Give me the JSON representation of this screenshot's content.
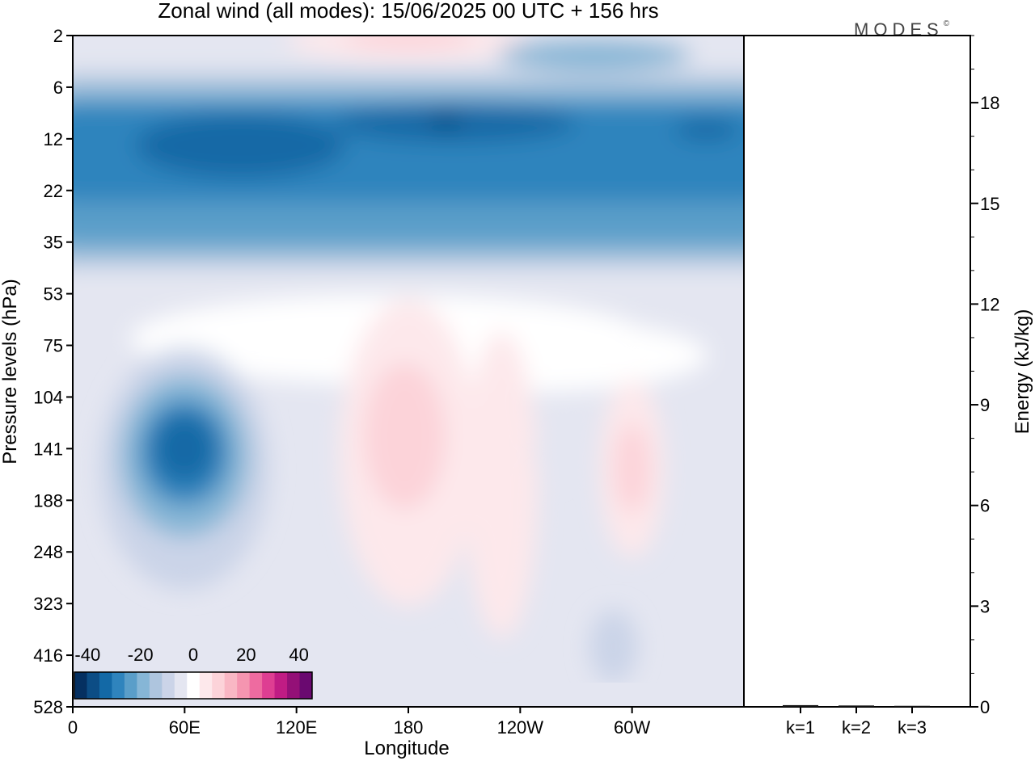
{
  "chart_data": [
    {
      "type": "heatmap",
      "title": "Zonal wind (all modes):  15/06/2025  00 UTC  + 156 hrs",
      "xlabel": "Longitude",
      "ylabel": "Pressure levels (hPa)",
      "x_ticks": [
        "0",
        "60E",
        "120E",
        "180",
        "120W",
        "60W"
      ],
      "y_ticks": [
        "2",
        "6",
        "12",
        "22",
        "35",
        "53",
        "75",
        "104",
        "141",
        "188",
        "248",
        "323",
        "416",
        "528"
      ],
      "colorbar": {
        "tick_labels": [
          "-40",
          "-20",
          "0",
          "20",
          "40"
        ],
        "range": [
          -45,
          45
        ],
        "step": 5,
        "colors": [
          "#053061",
          "#0c4d85",
          "#1369a6",
          "#2f84bd",
          "#5a9ec9",
          "#86b6d6",
          "#aec5de",
          "#cbd4e8",
          "#e4e6f1",
          "#ffffff",
          "#fde8eb",
          "#fcd3d9",
          "#f9b7c4",
          "#f595b0",
          "#ee6ba0",
          "#de3e92",
          "#c01c84",
          "#941077",
          "#6a0970"
        ]
      },
      "features": [
        {
          "lon": 90,
          "level": 12,
          "value": -28
        },
        {
          "lon": 200,
          "level": 10,
          "value": -30
        },
        {
          "lon": 60,
          "level": 141,
          "value": -32
        },
        {
          "lon": 180,
          "level": 141,
          "value": 13
        },
        {
          "lon": 300,
          "level": 160,
          "value": 11
        },
        {
          "lon": 190,
          "level": 2,
          "value": 14
        }
      ]
    },
    {
      "type": "bar",
      "ylabel": "Energy (kJ/kg)",
      "categories": [
        "k=1",
        "k=2",
        "k=3"
      ],
      "values": [
        0.05,
        0.04,
        0.03
      ],
      "y_ticks": [
        "0",
        "3",
        "6",
        "9",
        "12",
        "15",
        "18"
      ],
      "ylim": [
        0,
        20
      ]
    }
  ],
  "logo": "MODES",
  "logo_mark": "©"
}
